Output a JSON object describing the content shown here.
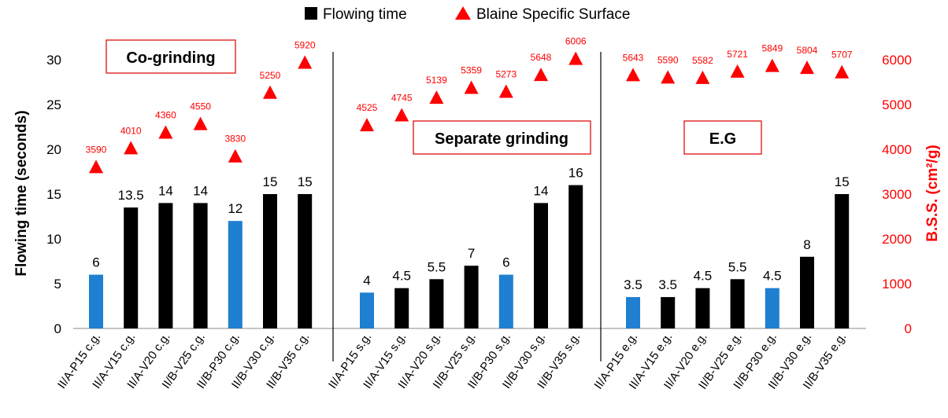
{
  "chart_data": {
    "type": "bar",
    "legend": {
      "placement": "top",
      "entries": [
        {
          "name": "Flowing time",
          "marker": "square",
          "color": "#000000"
        },
        {
          "name": "Blaine Specific Surface",
          "marker": "triangle",
          "color": "#ff0000"
        }
      ]
    },
    "y_left": {
      "label": "Flowing time (seconds)",
      "range": [
        0,
        30
      ],
      "ticks": [
        0,
        5,
        10,
        15,
        20,
        25,
        30
      ]
    },
    "y_right": {
      "label": "B.S.S. (cm²/g)",
      "range": [
        0,
        6000
      ],
      "ticks": [
        0,
        1000,
        2000,
        3000,
        4000,
        5000,
        6000
      ],
      "color": "#ff0000"
    },
    "colors": {
      "bar_black": "#000000",
      "bar_blue": "#1f7fd0",
      "triangle": "#ff0000",
      "bss_label": "#ff0000"
    },
    "groups": [
      {
        "title": "Co-grinding",
        "categories": [
          "II/A-P15 c.g.",
          "II/A-V15 c.g.",
          "II/A-V20 c.g.",
          "II/B-V25 c.g.",
          "II/B-P30 c.g.",
          "II/B-V30 c.g.",
          "II/B-V35 c.g."
        ],
        "flowing_time": [
          6,
          13.5,
          14,
          14,
          12,
          15,
          15
        ],
        "flowing_time_labels": [
          "6",
          "13.5",
          "14",
          "14",
          "12",
          "15",
          "15"
        ],
        "bar_colors": [
          "blue",
          "black",
          "black",
          "black",
          "blue",
          "black",
          "black"
        ],
        "bss": [
          3590,
          4010,
          4360,
          4550,
          3830,
          5250,
          5920
        ],
        "bss_labels": [
          "3590",
          "4010",
          "4360",
          "4550",
          "3830",
          "5250",
          "5920"
        ]
      },
      {
        "title": "Separate grinding",
        "categories": [
          "II/A-P15 s.g.",
          "II/A-V15 s.g.",
          "II/A-V20 s.g.",
          "II/B-V25 s.g.",
          "II/B-P30 s.g.",
          "II/B-V30 s.g.",
          "II/B-V35 s.g."
        ],
        "flowing_time": [
          4,
          4.5,
          5.5,
          7,
          6,
          14,
          16
        ],
        "flowing_time_labels": [
          "4",
          "4.5",
          "5.5",
          "7",
          "6",
          "14",
          "16"
        ],
        "bar_colors": [
          "blue",
          "black",
          "black",
          "black",
          "blue",
          "black",
          "black"
        ],
        "bss": [
          4525,
          4745,
          5139,
          5359,
          5273,
          5648,
          6006
        ],
        "bss_labels": [
          "4525",
          "4745",
          "5139",
          "5359",
          "5273",
          "5648",
          "6006"
        ]
      },
      {
        "title": "E.G",
        "categories": [
          "II/A-P15 e.g.",
          "II/A-V15 e.g.",
          "II/A-V20 e.g.",
          "II/B-V25 e.g.",
          "II/B-P30 e.g.",
          "II/B-V30 e.g.",
          "II/B-V35 e.g."
        ],
        "flowing_time": [
          3.5,
          3.5,
          4.5,
          5.5,
          4.5,
          8,
          15
        ],
        "flowing_time_labels": [
          "3.5",
          "3.5",
          "4.5",
          "5.5",
          "4.5",
          "8",
          "15"
        ],
        "bar_colors": [
          "blue",
          "black",
          "black",
          "black",
          "blue",
          "black",
          "black"
        ],
        "bss": [
          5643,
          5590,
          5582,
          5721,
          5849,
          5804,
          5707
        ],
        "bss_labels": [
          "5643",
          "5590",
          "5582",
          "5721",
          "5849",
          "5804",
          "5707"
        ]
      }
    ]
  }
}
